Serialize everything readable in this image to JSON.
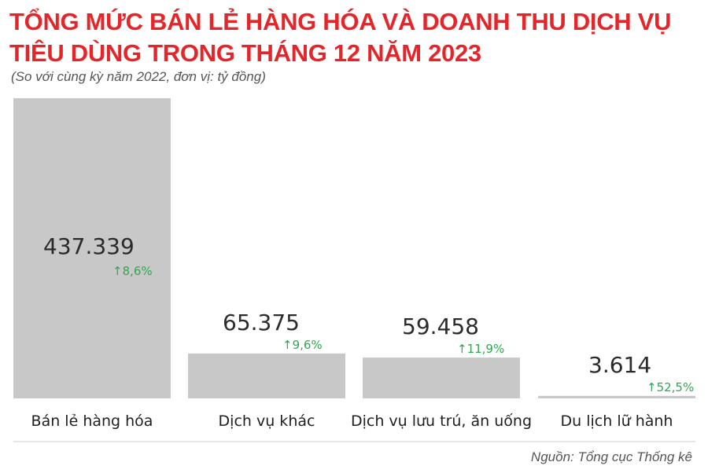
{
  "header": {
    "title": "TỔNG MỨC BÁN LẺ HÀNG HÓA VÀ DOANH THU DỊCH VỤ TIÊU DÙNG TRONG THÁNG 12 NĂM 2023",
    "subtitle": "(So với cùng kỳ năm 2022, đơn vị: tỷ đồng)"
  },
  "chart_data": {
    "type": "bar",
    "title": "TỔNG MỨC BÁN LẺ HÀNG HÓA VÀ DOANH THU DỊCH VỤ TIÊU DÙNG TRONG THÁNG 12 NĂM 2023",
    "subtitle": "(So với cùng kỳ năm 2022, đơn vị: tỷ đồng)",
    "categories": [
      "Bán lẻ hàng hóa",
      "Dịch vụ khác",
      "Dịch vụ lưu trú, ăn uống",
      "Du lịch lữ hành"
    ],
    "values": [
      437339,
      65375,
      59458,
      3614
    ],
    "value_labels": [
      "437.339",
      "65.375",
      "59.458",
      "3.614"
    ],
    "change_labels": [
      "8,6%",
      "9,6%",
      "11,9%",
      "52,5%"
    ],
    "change_values": [
      8.6,
      9.6,
      11.9,
      52.5
    ],
    "bar_color": "#c8c8c8",
    "change_color": "#2fa84f",
    "grid": false,
    "ylim": [
      0,
      437339
    ]
  },
  "footer": {
    "source": "Nguồn: Tổng cục Thống kê"
  },
  "colors": {
    "title": "#e4262b",
    "divider": "#cfcfcf"
  }
}
